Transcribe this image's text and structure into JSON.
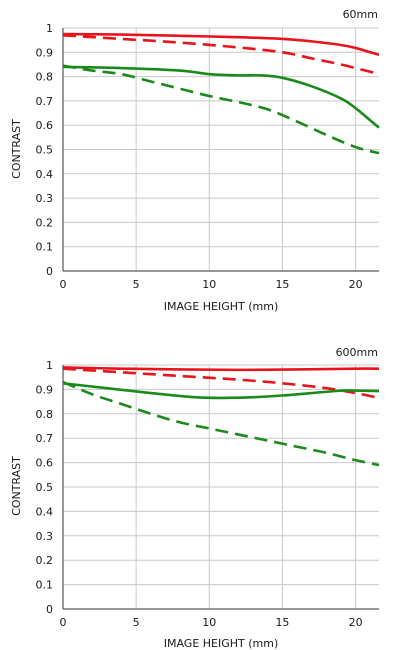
{
  "colors": {
    "red": "#e8141c",
    "green": "#1b8a1b",
    "grid": "#c8c8c8",
    "axis": "#333333"
  },
  "chart_data": [
    {
      "type": "line",
      "focal_label": "60mm",
      "xlabel": "IMAGE HEIGHT (mm)",
      "ylabel": "CONTRAST",
      "xlim": [
        0,
        21.6
      ],
      "ylim": [
        0,
        1
      ],
      "xticks": [
        0,
        5,
        10,
        15,
        20
      ],
      "yticks": [
        0,
        0.1,
        0.2,
        0.3,
        0.4,
        0.5,
        0.6,
        0.7,
        0.8,
        0.9,
        1
      ],
      "ytick_labels": [
        "0",
        "0.1",
        "0.2",
        "0.3",
        "0.4",
        "0.5",
        "0.6",
        "0.7",
        "0.8",
        "0.9",
        "1"
      ],
      "xtick_labels": [
        "0",
        "5",
        "10",
        "15",
        "20"
      ],
      "grid": true,
      "series": [
        {
          "color": "red",
          "dash": false,
          "x": [
            0,
            4,
            8,
            12,
            15,
            17,
            19,
            20,
            21,
            21.6
          ],
          "y": [
            0.975,
            0.973,
            0.968,
            0.962,
            0.955,
            0.945,
            0.93,
            0.918,
            0.9,
            0.89
          ]
        },
        {
          "color": "red",
          "dash": true,
          "x": [
            0,
            4,
            8,
            12,
            15,
            17,
            19,
            20,
            21,
            21.6
          ],
          "y": [
            0.97,
            0.955,
            0.94,
            0.92,
            0.9,
            0.875,
            0.85,
            0.835,
            0.82,
            0.81
          ]
        },
        {
          "color": "green",
          "dash": false,
          "x": [
            0,
            4,
            8,
            10,
            12,
            13.5,
            15,
            17,
            19,
            20,
            21,
            21.6
          ],
          "y": [
            0.84,
            0.835,
            0.825,
            0.81,
            0.805,
            0.805,
            0.795,
            0.76,
            0.71,
            0.67,
            0.62,
            0.59
          ]
        },
        {
          "color": "green",
          "dash": true,
          "x": [
            0,
            2,
            4,
            6,
            8,
            10,
            12,
            14,
            16,
            18,
            20,
            21.6
          ],
          "y": [
            0.845,
            0.825,
            0.81,
            0.78,
            0.75,
            0.72,
            0.695,
            0.665,
            0.615,
            0.56,
            0.51,
            0.485
          ]
        }
      ]
    },
    {
      "type": "line",
      "focal_label": "600mm",
      "xlabel": "IMAGE HEIGHT (mm)",
      "ylabel": "CONTRAST",
      "xlim": [
        0,
        21.6
      ],
      "ylim": [
        0,
        1
      ],
      "xticks": [
        0,
        5,
        10,
        15,
        20
      ],
      "yticks": [
        0,
        0.1,
        0.2,
        0.3,
        0.4,
        0.5,
        0.6,
        0.7,
        0.8,
        0.9,
        1
      ],
      "ytick_labels": [
        "0",
        "0.1",
        "0.2",
        "0.3",
        "0.4",
        "0.5",
        "0.6",
        "0.7",
        "0.8",
        "0.9",
        "1"
      ],
      "xtick_labels": [
        "0",
        "5",
        "10",
        "15",
        "20"
      ],
      "grid": true,
      "series": [
        {
          "color": "red",
          "dash": false,
          "x": [
            0,
            4,
            8,
            12,
            16,
            20,
            21.6
          ],
          "y": [
            0.99,
            0.985,
            0.982,
            0.98,
            0.982,
            0.985,
            0.985
          ]
        },
        {
          "color": "red",
          "dash": true,
          "x": [
            0,
            4,
            8,
            12,
            15,
            18,
            20,
            21.6
          ],
          "y": [
            0.985,
            0.97,
            0.955,
            0.94,
            0.925,
            0.905,
            0.885,
            0.865
          ]
        },
        {
          "color": "green",
          "dash": false,
          "x": [
            0,
            3,
            6,
            9,
            11,
            13,
            15,
            17,
            19,
            20,
            21.6
          ],
          "y": [
            0.925,
            0.905,
            0.885,
            0.868,
            0.865,
            0.868,
            0.875,
            0.885,
            0.895,
            0.895,
            0.893
          ]
        },
        {
          "color": "green",
          "dash": true,
          "x": [
            0,
            2,
            4,
            6,
            8,
            10,
            12,
            14,
            16,
            18,
            20,
            21.6
          ],
          "y": [
            0.93,
            0.88,
            0.84,
            0.8,
            0.765,
            0.74,
            0.715,
            0.69,
            0.665,
            0.64,
            0.61,
            0.59
          ]
        }
      ]
    }
  ]
}
